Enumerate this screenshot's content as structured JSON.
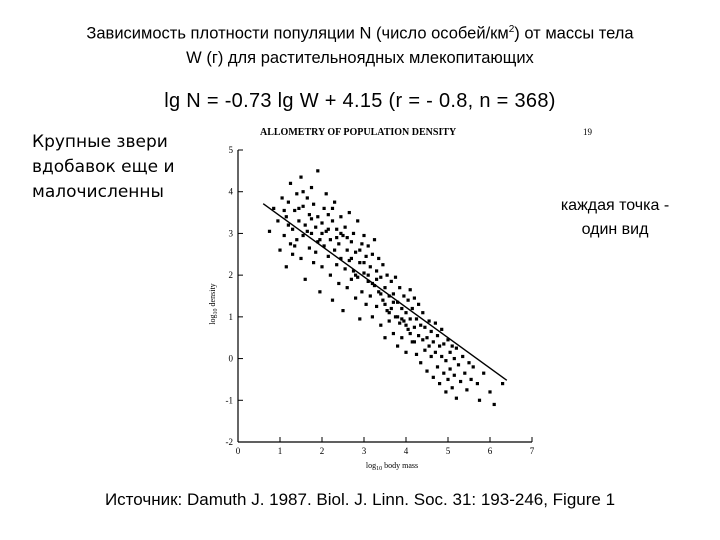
{
  "slide": {
    "title_line1": "Зависимость плотности популяции N (число особей/км",
    "title_sup": "2",
    "title_line1_end": ") от массы тела",
    "title_line2": "W (г) для растительноядных млекопитающих",
    "formula": "lg N = -0.73 lg W + 4.15 (r = - 0.8, n = 368)",
    "left_note": [
      "Крупные звери",
      "вдобавок еще и",
      "малочисленны"
    ],
    "right_note": [
      "каждая точка -",
      "один вид"
    ],
    "source": "Источник: Damuth J. 1987. Biol. J. Linn. Soc. 31: 193-246, Figure 1"
  },
  "chart_data": {
    "type": "scatter",
    "title": "ALLOMETRY OF POPULATION DENSITY",
    "corner_text": "19",
    "xlabel_prefix": "log",
    "xlabel_sub": "10",
    "xlabel_suffix": " body mass",
    "ylabel_prefix": "log",
    "ylabel_sub": "10",
    "ylabel_suffix": " density",
    "xlim": [
      0,
      7
    ],
    "ylim": [
      -2,
      5
    ],
    "xticks": [
      "0",
      "1",
      "2",
      "3",
      "4",
      "5",
      "6",
      "7"
    ],
    "yticks": [
      "-2",
      "-1",
      "0",
      "1",
      "2",
      "3",
      "4",
      "5"
    ],
    "regression": {
      "slope": -0.73,
      "intercept": 4.15,
      "x_range": [
        0.6,
        6.4
      ]
    },
    "points": [
      [
        0.75,
        3.05
      ],
      [
        0.85,
        3.6
      ],
      [
        0.95,
        3.3
      ],
      [
        1.0,
        2.6
      ],
      [
        1.05,
        3.85
      ],
      [
        1.1,
        2.95
      ],
      [
        1.15,
        3.4
      ],
      [
        1.15,
        2.2
      ],
      [
        1.2,
        3.75
      ],
      [
        1.25,
        2.75
      ],
      [
        1.25,
        4.2
      ],
      [
        1.3,
        3.1
      ],
      [
        1.3,
        2.5
      ],
      [
        1.35,
        3.55
      ],
      [
        1.4,
        3.95
      ],
      [
        1.4,
        2.85
      ],
      [
        1.45,
        3.3
      ],
      [
        1.5,
        2.4
      ],
      [
        1.5,
        4.35
      ],
      [
        1.55,
        3.65
      ],
      [
        1.55,
        2.95
      ],
      [
        1.6,
        3.2
      ],
      [
        1.6,
        1.9
      ],
      [
        1.65,
        3.85
      ],
      [
        1.7,
        2.65
      ],
      [
        1.7,
        3.45
      ],
      [
        1.75,
        3.0
      ],
      [
        1.75,
        4.1
      ],
      [
        1.8,
        2.3
      ],
      [
        1.8,
        3.7
      ],
      [
        1.85,
        3.15
      ],
      [
        1.85,
        2.55
      ],
      [
        1.9,
        3.4
      ],
      [
        1.9,
        4.5
      ],
      [
        1.95,
        2.85
      ],
      [
        1.95,
        1.6
      ],
      [
        2.0,
        3.25
      ],
      [
        2.0,
        2.2
      ],
      [
        2.05,
        3.6
      ],
      [
        2.05,
        2.7
      ],
      [
        2.1,
        3.95
      ],
      [
        2.1,
        3.05
      ],
      [
        2.15,
        2.45
      ],
      [
        2.15,
        3.45
      ],
      [
        2.2,
        2.0
      ],
      [
        2.2,
        2.85
      ],
      [
        2.25,
        3.3
      ],
      [
        2.25,
        1.4
      ],
      [
        2.3,
        2.6
      ],
      [
        2.3,
        3.75
      ],
      [
        2.35,
        2.25
      ],
      [
        2.35,
        3.1
      ],
      [
        2.4,
        2.75
      ],
      [
        2.4,
        1.8
      ],
      [
        2.45,
        3.4
      ],
      [
        2.45,
        2.4
      ],
      [
        2.5,
        2.95
      ],
      [
        2.5,
        1.15
      ],
      [
        2.55,
        2.15
      ],
      [
        2.55,
        3.15
      ],
      [
        2.6,
        2.6
      ],
      [
        2.6,
        1.7
      ],
      [
        2.65,
        3.5
      ],
      [
        2.65,
        2.35
      ],
      [
        2.7,
        1.9
      ],
      [
        2.7,
        2.8
      ],
      [
        2.75,
        2.1
      ],
      [
        2.75,
        3.0
      ],
      [
        2.8,
        1.45
      ],
      [
        2.8,
        2.55
      ],
      [
        2.85,
        1.95
      ],
      [
        2.85,
        3.3
      ],
      [
        2.9,
        2.3
      ],
      [
        2.9,
        0.95
      ],
      [
        2.95,
        2.75
      ],
      [
        2.95,
        1.6
      ],
      [
        3.0,
        2.05
      ],
      [
        3.0,
        2.95
      ],
      [
        3.05,
        1.3
      ],
      [
        3.05,
        2.45
      ],
      [
        3.1,
        1.85
      ],
      [
        3.1,
        2.7
      ],
      [
        3.15,
        1.5
      ],
      [
        3.15,
        2.2
      ],
      [
        3.2,
        1.0
      ],
      [
        3.2,
        2.5
      ],
      [
        3.25,
        1.75
      ],
      [
        3.25,
        2.85
      ],
      [
        3.3,
        1.25
      ],
      [
        3.3,
        2.1
      ],
      [
        3.35,
        1.6
      ],
      [
        3.35,
        2.4
      ],
      [
        3.4,
        0.8
      ],
      [
        3.4,
        1.95
      ],
      [
        3.45,
        1.4
      ],
      [
        3.45,
        2.25
      ],
      [
        3.5,
        1.7
      ],
      [
        3.5,
        0.5
      ],
      [
        3.55,
        1.15
      ],
      [
        3.55,
        2.0
      ],
      [
        3.6,
        1.5
      ],
      [
        3.6,
        0.9
      ],
      [
        3.65,
        1.85
      ],
      [
        3.65,
        1.2
      ],
      [
        3.7,
        0.6
      ],
      [
        3.7,
        1.55
      ],
      [
        3.75,
        1.0
      ],
      [
        3.75,
        1.95
      ],
      [
        3.8,
        1.35
      ],
      [
        3.8,
        0.3
      ],
      [
        3.85,
        1.7
      ],
      [
        3.85,
        0.85
      ],
      [
        3.9,
        1.2
      ],
      [
        3.9,
        0.5
      ],
      [
        3.95,
        1.5
      ],
      [
        3.95,
        0.9
      ],
      [
        4.0,
        1.1
      ],
      [
        4.0,
        0.15
      ],
      [
        4.05,
        1.4
      ],
      [
        4.05,
        0.7
      ],
      [
        4.1,
        0.95
      ],
      [
        4.1,
        1.65
      ],
      [
        4.15,
        0.4
      ],
      [
        4.15,
        1.2
      ],
      [
        4.2,
        0.75
      ],
      [
        4.2,
        1.45
      ],
      [
        4.25,
        0.1
      ],
      [
        4.25,
        0.95
      ],
      [
        4.3,
        0.55
      ],
      [
        4.3,
        1.3
      ],
      [
        4.35,
        0.8
      ],
      [
        4.35,
        -0.1
      ],
      [
        4.4,
        0.45
      ],
      [
        4.4,
        1.1
      ],
      [
        4.45,
        0.2
      ],
      [
        4.45,
        0.75
      ],
      [
        4.5,
        0.5
      ],
      [
        4.5,
        -0.3
      ],
      [
        4.55,
        0.9
      ],
      [
        4.55,
        0.3
      ],
      [
        4.6,
        0.05
      ],
      [
        4.6,
        0.65
      ],
      [
        4.65,
        -0.45
      ],
      [
        4.65,
        0.4
      ],
      [
        4.7,
        0.85
      ],
      [
        4.7,
        0.15
      ],
      [
        4.75,
        -0.2
      ],
      [
        4.75,
        0.55
      ],
      [
        4.8,
        0.3
      ],
      [
        4.8,
        -0.6
      ],
      [
        4.85,
        0.05
      ],
      [
        4.85,
        0.7
      ],
      [
        4.9,
        -0.35
      ],
      [
        4.9,
        0.35
      ],
      [
        4.95,
        -0.05
      ],
      [
        4.95,
        -0.8
      ],
      [
        5.0,
        0.45
      ],
      [
        5.0,
        -0.5
      ],
      [
        5.05,
        0.15
      ],
      [
        5.05,
        -0.25
      ],
      [
        5.1,
        -0.7
      ],
      [
        5.1,
        0.3
      ],
      [
        5.15,
        -0.4
      ],
      [
        5.15,
        0.0
      ],
      [
        5.2,
        -0.95
      ],
      [
        5.2,
        0.25
      ],
      [
        5.25,
        -0.15
      ],
      [
        5.3,
        -0.55
      ],
      [
        5.35,
        0.05
      ],
      [
        5.4,
        -0.35
      ],
      [
        5.45,
        -0.75
      ],
      [
        5.5,
        -0.1
      ],
      [
        5.55,
        -0.5
      ],
      [
        5.6,
        -0.2
      ],
      [
        5.7,
        -0.6
      ],
      [
        5.75,
        -1.0
      ],
      [
        5.85,
        -0.35
      ],
      [
        6.0,
        -0.8
      ],
      [
        6.1,
        -1.1
      ],
      [
        6.3,
        -0.6
      ],
      [
        2.0,
        3.0
      ],
      [
        1.9,
        2.8
      ],
      [
        2.15,
        3.1
      ],
      [
        2.25,
        3.6
      ],
      [
        1.75,
        3.35
      ],
      [
        1.65,
        3.05
      ],
      [
        2.35,
        2.9
      ],
      [
        2.45,
        3.0
      ],
      [
        2.6,
        2.9
      ],
      [
        2.7,
        2.4
      ],
      [
        1.45,
        3.6
      ],
      [
        1.55,
        4.0
      ],
      [
        1.35,
        2.7
      ],
      [
        1.2,
        3.2
      ],
      [
        1.1,
        3.55
      ],
      [
        2.8,
        2.0
      ],
      [
        2.9,
        2.6
      ],
      [
        3.0,
        2.3
      ],
      [
        3.1,
        2.0
      ],
      [
        3.2,
        1.8
      ],
      [
        3.3,
        1.9
      ],
      [
        3.4,
        1.55
      ],
      [
        3.5,
        1.3
      ],
      [
        3.6,
        1.1
      ],
      [
        3.7,
        1.35
      ],
      [
        3.8,
        1.0
      ],
      [
        3.9,
        0.95
      ],
      [
        4.0,
        0.8
      ],
      [
        4.1,
        0.6
      ],
      [
        4.2,
        0.4
      ]
    ]
  }
}
